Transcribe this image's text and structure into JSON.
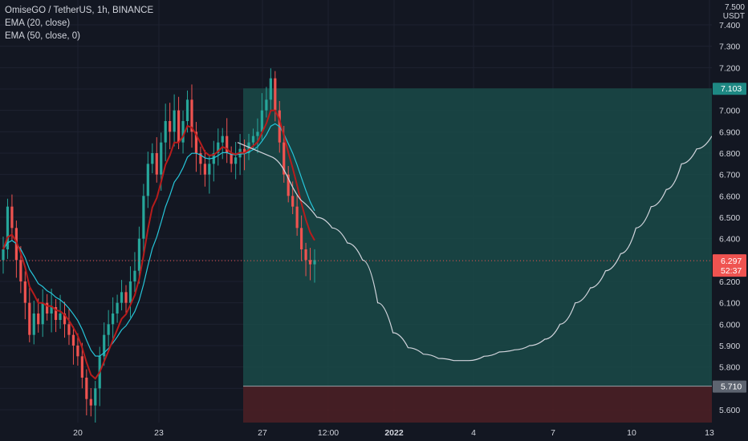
{
  "legend": {
    "symbol": "OmiseGO / TetherUS, 1h, BINANCE",
    "ema20": "EMA (20, close)",
    "ema50": "EMA (50, close, 0)"
  },
  "price_axis": {
    "unit_top": "7.500",
    "unit": "USDT"
  },
  "colors": {
    "background": "#131722",
    "bull": "#26a69a",
    "bear": "#ef5350",
    "ema20": "#b71c1c",
    "ema50": "#26c6da",
    "target_zone": "#1a4a48",
    "stop_zone": "#4a1f25",
    "forecast_line": "#d1d4dc"
  },
  "chart_data": {
    "type": "candlestick",
    "title": "OmiseGO / TetherUS, 1h, BINANCE",
    "ylim": [
      5.55,
      7.5
    ],
    "y_ticks": [
      "7.400",
      "7.300",
      "7.200",
      "7.100",
      "7.000",
      "6.900",
      "6.800",
      "6.700",
      "6.600",
      "6.500",
      "6.400",
      "6.300",
      "6.200",
      "6.100",
      "6.000",
      "5.900",
      "5.800",
      "5.700",
      "5.600"
    ],
    "x_ticks": [
      "20",
      "23",
      "27",
      "12:00",
      "2022",
      "4",
      "7",
      "10",
      "13"
    ],
    "x_ticks_bold": [
      "2022"
    ],
    "price_close_series": [
      6.35,
      6.55,
      6.45,
      6.3,
      6.2,
      6.1,
      5.95,
      6.05,
      6.0,
      6.1,
      6.05,
      6.08,
      6.02,
      6.05,
      6.0,
      5.95,
      5.9,
      5.85,
      5.75,
      5.65,
      5.62,
      5.7,
      5.85,
      5.95,
      6.0,
      6.05,
      6.1,
      6.15,
      6.1,
      6.2,
      6.25,
      6.4,
      6.6,
      6.75,
      6.8,
      6.7,
      6.85,
      6.95,
      6.9,
      7.0,
      6.85,
      6.95,
      7.05,
      6.9,
      6.8,
      6.75,
      6.7,
      6.75,
      6.8,
      6.85,
      6.88,
      6.8,
      6.75,
      6.78,
      6.82,
      6.8,
      6.85,
      6.88,
      6.9,
      7.0,
      7.05,
      7.15,
      7.0,
      6.85,
      6.7,
      6.6,
      6.55,
      6.45,
      6.35,
      6.3,
      6.28,
      6.3
    ],
    "forecast_path": [
      [
        6.55,
        6.5
      ],
      [
        6.5,
        6.45
      ],
      [
        6.45,
        6.38
      ],
      [
        6.38,
        6.3
      ],
      [
        6.3,
        6.1
      ],
      [
        6.1,
        5.96
      ],
      [
        5.96,
        5.89
      ],
      [
        5.89,
        5.86
      ],
      [
        5.86,
        5.84
      ],
      [
        5.84,
        5.83
      ],
      [
        5.83,
        5.83
      ],
      [
        5.83,
        5.85
      ],
      [
        5.85,
        5.87
      ],
      [
        5.87,
        5.88
      ],
      [
        5.88,
        5.9
      ],
      [
        5.9,
        5.93
      ],
      [
        5.93,
        6.0
      ],
      [
        6.0,
        6.1
      ],
      [
        6.1,
        6.17
      ],
      [
        6.17,
        6.25
      ],
      [
        6.25,
        6.33
      ],
      [
        6.33,
        6.45
      ],
      [
        6.45,
        6.55
      ],
      [
        6.55,
        6.63
      ],
      [
        6.63,
        6.75
      ],
      [
        6.75,
        6.82
      ],
      [
        6.82,
        6.88
      ]
    ],
    "target_level": "7.103",
    "stop_level": "5.710",
    "current_price": "6.297",
    "countdown": "52:37"
  }
}
